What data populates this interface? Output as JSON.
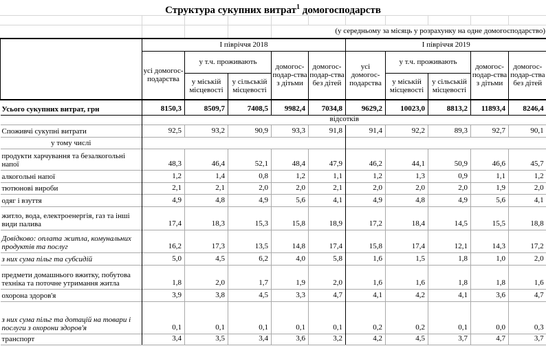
{
  "title": {
    "main": "Структура сукупних витрат",
    "footnote_mark": "1",
    "suffix": " домогосподарств"
  },
  "subtitle": "(у середньому за місяць у розрахунку на одне домогосподарство)",
  "table": {
    "column_groups": [
      {
        "period": "І півріччя 2018"
      },
      {
        "period": "І півріччя 2019"
      }
    ],
    "column_headers": {
      "all_households": "усі домогос-подарства",
      "including_living": "у т.ч. проживають",
      "urban": "у міській місцевості",
      "rural": "у сільській місцевості",
      "with_children": "домогос-подар-ства з дітьми",
      "without_children": "домогос-подар-ства без дітей"
    },
    "rows": [
      {
        "kind": "total",
        "label": "Усього сукупних витрат, грн",
        "values": [
          "8150,3",
          "8509,7",
          "7408,5",
          "9982,4",
          "7034,8",
          "9629,2",
          "10023,0",
          "8813,2",
          "11893,4",
          "8246,4"
        ]
      },
      {
        "kind": "percent",
        "label": "відсотків"
      },
      {
        "kind": "data",
        "indent": 0,
        "label": "Споживчі сукупні витрати",
        "values": [
          "92,5",
          "93,2",
          "90,9",
          "93,3",
          "91,8",
          "91,4",
          "92,2",
          "89,3",
          "92,7",
          "90,1"
        ]
      },
      {
        "kind": "section",
        "label": "у тому числі"
      },
      {
        "kind": "data",
        "indent": 1,
        "label": "продукти харчування та безалкогольні напої",
        "values": [
          "48,3",
          "46,4",
          "52,1",
          "48,4",
          "47,9",
          "46,2",
          "44,1",
          "50,9",
          "46,6",
          "45,7"
        ]
      },
      {
        "kind": "data",
        "indent": 1,
        "label": "алкогольні напої",
        "values": [
          "1,2",
          "1,4",
          "0,8",
          "1,2",
          "1,1",
          "1,2",
          "1,3",
          "0,9",
          "1,1",
          "1,2"
        ]
      },
      {
        "kind": "data",
        "indent": 1,
        "label": "тютюнові вироби",
        "values": [
          "2,1",
          "2,1",
          "2,0",
          "2,0",
          "2,1",
          "2,0",
          "2,0",
          "2,0",
          "1,9",
          "2,0"
        ]
      },
      {
        "kind": "data",
        "indent": 1,
        "label": "одяг і взуття",
        "values": [
          "4,9",
          "4,8",
          "4,9",
          "5,6",
          "4,1",
          "4,9",
          "4,8",
          "4,9",
          "5,6",
          "4,1"
        ]
      },
      {
        "kind": "data",
        "indent": 1,
        "label": "житло, вода, електроенергія, газ та інші види палива",
        "values": [
          "17,4",
          "18,3",
          "15,3",
          "15,8",
          "18,9",
          "17,2",
          "18,4",
          "14,5",
          "15,5",
          "18,8"
        ]
      },
      {
        "kind": "data",
        "indent": 2,
        "style": "italic",
        "label": "Довідково: оплата житла, комунальних продуктів та послуг",
        "values": [
          "16,2",
          "17,3",
          "13,5",
          "14,8",
          "17,4",
          "15,8",
          "17,4",
          "12,1",
          "14,3",
          "17,2"
        ]
      },
      {
        "kind": "data",
        "indent": 3,
        "style": "italic",
        "label": "з них  сума пільг та субсидій",
        "values": [
          "5,0",
          "4,5",
          "6,2",
          "4,0",
          "5,8",
          "1,6",
          "1,5",
          "1,8",
          "1,0",
          "2,0"
        ]
      },
      {
        "kind": "data",
        "indent": 1,
        "label": "предмети домашнього вжитку, побутова техніка та поточне утримання житла",
        "values": [
          "1,8",
          "2,0",
          "1,7",
          "1,9",
          "2,0",
          "1,6",
          "1,6",
          "1,8",
          "1,8",
          "1,6"
        ]
      },
      {
        "kind": "data",
        "indent": 1,
        "label": "охорона здоров'я",
        "values": [
          "3,9",
          "3,8",
          "4,5",
          "3,3",
          "4,7",
          "4,1",
          "4,2",
          "4,1",
          "3,6",
          "4,7"
        ]
      },
      {
        "kind": "data",
        "indent": 3,
        "style": "italic",
        "label": "з них сума пільг та дотацій на товари і послуги з охорони здоров'я",
        "values": [
          "0,1",
          "0,1",
          "0,1",
          "0,1",
          "0,1",
          "0,2",
          "0,2",
          "0,1",
          "0,0",
          "0,3"
        ]
      },
      {
        "kind": "data",
        "indent": 1,
        "label": "транспорт",
        "values": [
          "3,4",
          "3,5",
          "3,4",
          "3,6",
          "3,2",
          "4,2",
          "4,5",
          "3,7",
          "4,7",
          "3,7"
        ]
      }
    ]
  }
}
